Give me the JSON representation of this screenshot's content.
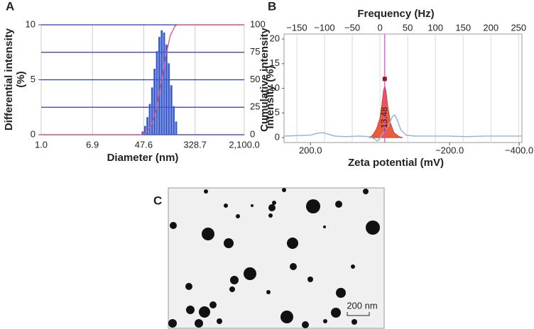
{
  "panel_labels": [
    "A",
    "B",
    "C"
  ],
  "chart_data": [
    {
      "type": "histogram",
      "xlabel": "Diameter (nm)",
      "ylabel": "Differential intensity (%)",
      "y2label": "Cumulative intensity",
      "xscale": "log",
      "xlim": [
        1,
        2100
      ],
      "xticks": [
        {
          "value": 1,
          "label": "1.0"
        },
        6.9,
        47.6,
        328.7,
        {
          "value": 2100,
          "label": "2,100.0"
        }
      ],
      "ylim": [
        0,
        10
      ],
      "yticks": [
        0,
        5,
        10
      ],
      "y2lim": [
        0,
        100
      ],
      "y2ticks": [
        0,
        25,
        50,
        75,
        100
      ],
      "grid": true,
      "grid_color": "#2a3aa8",
      "bins": [
        44,
        48.1,
        52.7,
        57.6,
        63,
        68.9,
        75.4,
        82.5,
        90.3,
        98.7,
        108,
        118,
        129,
        142,
        155,
        170
      ],
      "series": [
        {
          "color": "#3b5bd0",
          "values": [
            0.3,
            0.8,
            1.6,
            2.8,
            4.3,
            6.0,
            7.6,
            8.9,
            9.5,
            9.3,
            8.2,
            6.5,
            4.5,
            2.6,
            1.2
          ]
        },
        {
          "color": "#d9507e",
          "axis": "y2",
          "x": [
            1,
            44,
            52.7,
            63,
            75.4,
            90.3,
            108,
            129,
            155,
            170,
            2100
          ],
          "values": [
            0,
            0,
            2,
            8,
            22,
            45,
            70,
            90,
            99,
            100,
            100
          ]
        }
      ]
    },
    {
      "type": "line",
      "xlabel": "Zeta potential (mV)",
      "x2label": "Frequency (Hz)",
      "ylabel": "Intensity (%)",
      "xlim": [
        276,
        -408
      ],
      "xticks": [
        {
          "value": 200,
          "label": "200.0"
        },
        {
          "value": -200,
          "label": "−200.0"
        },
        {
          "value": -400,
          "label": "−400.0"
        }
      ],
      "x2lim": [
        -173,
        256
      ],
      "x2ticks": [
        {
          "value": -150,
          "label": "−150"
        },
        {
          "value": -100,
          "label": "−100"
        },
        {
          "value": -50,
          "label": "−50"
        },
        0,
        50,
        100,
        150,
        200,
        250
      ],
      "ylim": [
        -1,
        20
      ],
      "yticks": [
        0,
        5,
        10,
        15,
        20
      ],
      "grid": true,
      "series": [
        {
          "color": "#8fb3d6",
          "x": [
            276,
            240,
            200,
            180,
            165,
            150,
            130,
            100,
            60,
            30,
            15,
            8,
            2,
            -5,
            -15,
            -25,
            -35,
            -42,
            -50,
            -60,
            -75,
            -100,
            -150,
            -200,
            -250,
            -300,
            -350,
            -408
          ],
          "values": [
            0.3,
            0.4,
            0.5,
            0.9,
            1.0,
            0.7,
            0.3,
            0.2,
            0.3,
            0.2,
            -0.3,
            -0.7,
            -0.3,
            0.5,
            1.5,
            2.5,
            4.2,
            4.6,
            3.5,
            1.5,
            0.5,
            0.3,
            0.3,
            0.3,
            0.2,
            0.3,
            0.3,
            0.3
          ]
        },
        {
          "color": "#ee5a3c",
          "fill": true,
          "x": [
            30,
            20,
            10,
            0,
            -5,
            -10,
            -13.48,
            -17,
            -22,
            -30,
            -40,
            -55,
            -65
          ],
          "values": [
            0,
            0.6,
            1.8,
            4.0,
            6.5,
            9.5,
            10.5,
            9.5,
            6.5,
            3.0,
            1.0,
            0.2,
            0
          ]
        }
      ],
      "mean": {
        "x": -13.48,
        "y": 11.9,
        "color": "#8b1a1a",
        "line_color": "#e040e0"
      }
    }
  ],
  "image": {
    "scale_bar": "200 nm"
  }
}
